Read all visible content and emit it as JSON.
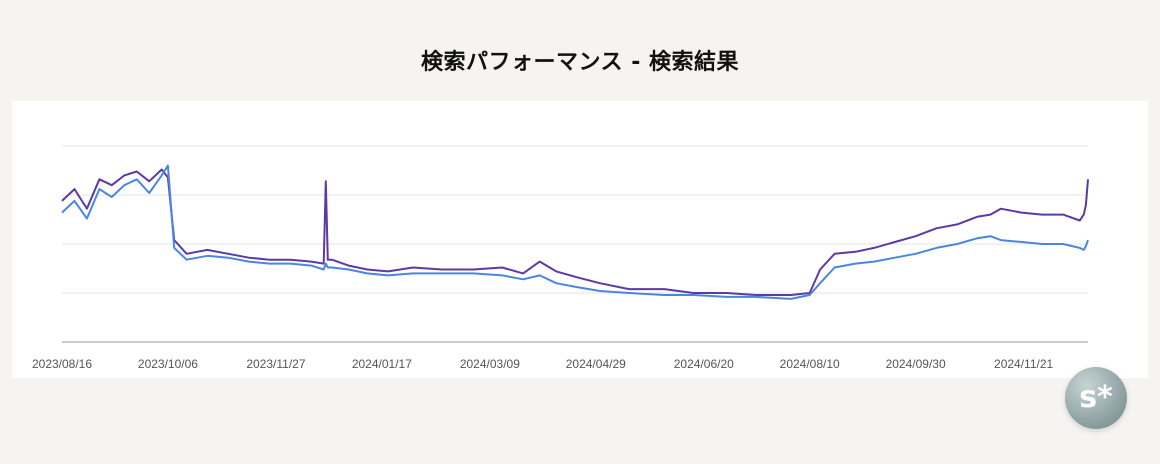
{
  "title": "検索パフォーマンス - 検索結果",
  "badge": {
    "text": "s*",
    "icon": "site-logo-badge"
  },
  "chart_data": {
    "type": "line",
    "title": "検索パフォーマンス - 検索結果",
    "x_start": "2023-08-16",
    "x_end": "2024-12-22",
    "tick_labels": [
      "2023/08/16",
      "2023/10/06",
      "2023/11/27",
      "2024/01/17",
      "2024/03/09",
      "2024/04/29",
      "2024/06/20",
      "2024/08/10",
      "2024/09/30",
      "2024/11/21"
    ],
    "ylim": [
      0,
      100
    ],
    "grid": true,
    "y_axis_labels_visible": false,
    "legend": "none",
    "colors": {
      "purple": "#5b3aa6",
      "blue": "#4a86e0"
    },
    "series": [
      {
        "color": "#5b3aa6",
        "x": [
          "2023-08-16",
          "2023-08-22",
          "2023-08-28",
          "2023-09-03",
          "2023-09-09",
          "2023-09-15",
          "2023-09-21",
          "2023-09-27",
          "2023-10-03",
          "2023-10-06",
          "2023-10-09",
          "2023-10-15",
          "2023-10-25",
          "2023-11-04",
          "2023-11-14",
          "2023-11-24",
          "2023-12-04",
          "2023-12-14",
          "2023-12-20",
          "2023-12-21",
          "2023-12-22",
          "2023-12-24",
          "2024-01-01",
          "2024-01-10",
          "2024-01-20",
          "2024-02-01",
          "2024-02-15",
          "2024-03-01",
          "2024-03-15",
          "2024-03-25",
          "2024-04-02",
          "2024-04-10",
          "2024-04-20",
          "2024-05-01",
          "2024-05-15",
          "2024-06-01",
          "2024-06-15",
          "2024-07-01",
          "2024-07-15",
          "2024-08-01",
          "2024-08-10",
          "2024-08-15",
          "2024-08-22",
          "2024-09-01",
          "2024-09-10",
          "2024-09-20",
          "2024-09-30",
          "2024-10-10",
          "2024-10-20",
          "2024-10-30",
          "2024-11-05",
          "2024-11-10",
          "2024-11-20",
          "2024-11-30",
          "2024-12-10",
          "2024-12-18",
          "2024-12-20",
          "2024-12-21",
          "2024-12-22"
        ],
        "y": [
          72,
          78,
          68,
          83,
          80,
          85,
          87,
          82,
          88,
          84,
          52,
          45,
          47,
          45,
          43,
          42,
          42,
          41,
          40,
          82,
          42,
          42,
          39,
          37,
          36,
          38,
          37,
          37,
          38,
          35,
          41,
          36,
          33,
          30,
          27,
          27,
          25,
          25,
          24,
          24,
          25,
          37,
          45,
          46,
          48,
          51,
          54,
          58,
          60,
          64,
          65,
          68,
          66,
          65,
          65,
          62,
          65,
          70,
          83
        ]
      },
      {
        "color": "#4a86e0",
        "x": [
          "2023-08-16",
          "2023-08-22",
          "2023-08-28",
          "2023-09-03",
          "2023-09-09",
          "2023-09-15",
          "2023-09-21",
          "2023-09-27",
          "2023-10-03",
          "2023-10-06",
          "2023-10-09",
          "2023-10-15",
          "2023-10-25",
          "2023-11-04",
          "2023-11-14",
          "2023-11-24",
          "2023-12-04",
          "2023-12-14",
          "2023-12-20",
          "2023-12-21",
          "2023-12-22",
          "2023-12-24",
          "2024-01-01",
          "2024-01-10",
          "2024-01-20",
          "2024-02-01",
          "2024-02-15",
          "2024-03-01",
          "2024-03-15",
          "2024-03-25",
          "2024-04-02",
          "2024-04-10",
          "2024-04-20",
          "2024-05-01",
          "2024-05-15",
          "2024-06-01",
          "2024-06-15",
          "2024-07-01",
          "2024-07-15",
          "2024-08-01",
          "2024-08-10",
          "2024-08-15",
          "2024-08-22",
          "2024-09-01",
          "2024-09-10",
          "2024-09-20",
          "2024-09-30",
          "2024-10-10",
          "2024-10-20",
          "2024-10-30",
          "2024-11-05",
          "2024-11-10",
          "2024-11-20",
          "2024-11-30",
          "2024-12-10",
          "2024-12-18",
          "2024-12-20",
          "2024-12-21",
          "2024-12-22"
        ],
        "y": [
          66,
          72,
          63,
          78,
          74,
          80,
          83,
          76,
          85,
          90,
          48,
          42,
          44,
          43,
          41,
          40,
          40,
          39,
          37,
          40,
          38,
          38,
          37,
          35,
          34,
          35,
          35,
          35,
          34,
          32,
          34,
          30,
          28,
          26,
          25,
          24,
          24,
          23,
          23,
          22,
          24,
          30,
          38,
          40,
          41,
          43,
          45,
          48,
          50,
          53,
          54,
          52,
          51,
          50,
          50,
          48,
          47,
          49,
          52
        ]
      }
    ]
  }
}
